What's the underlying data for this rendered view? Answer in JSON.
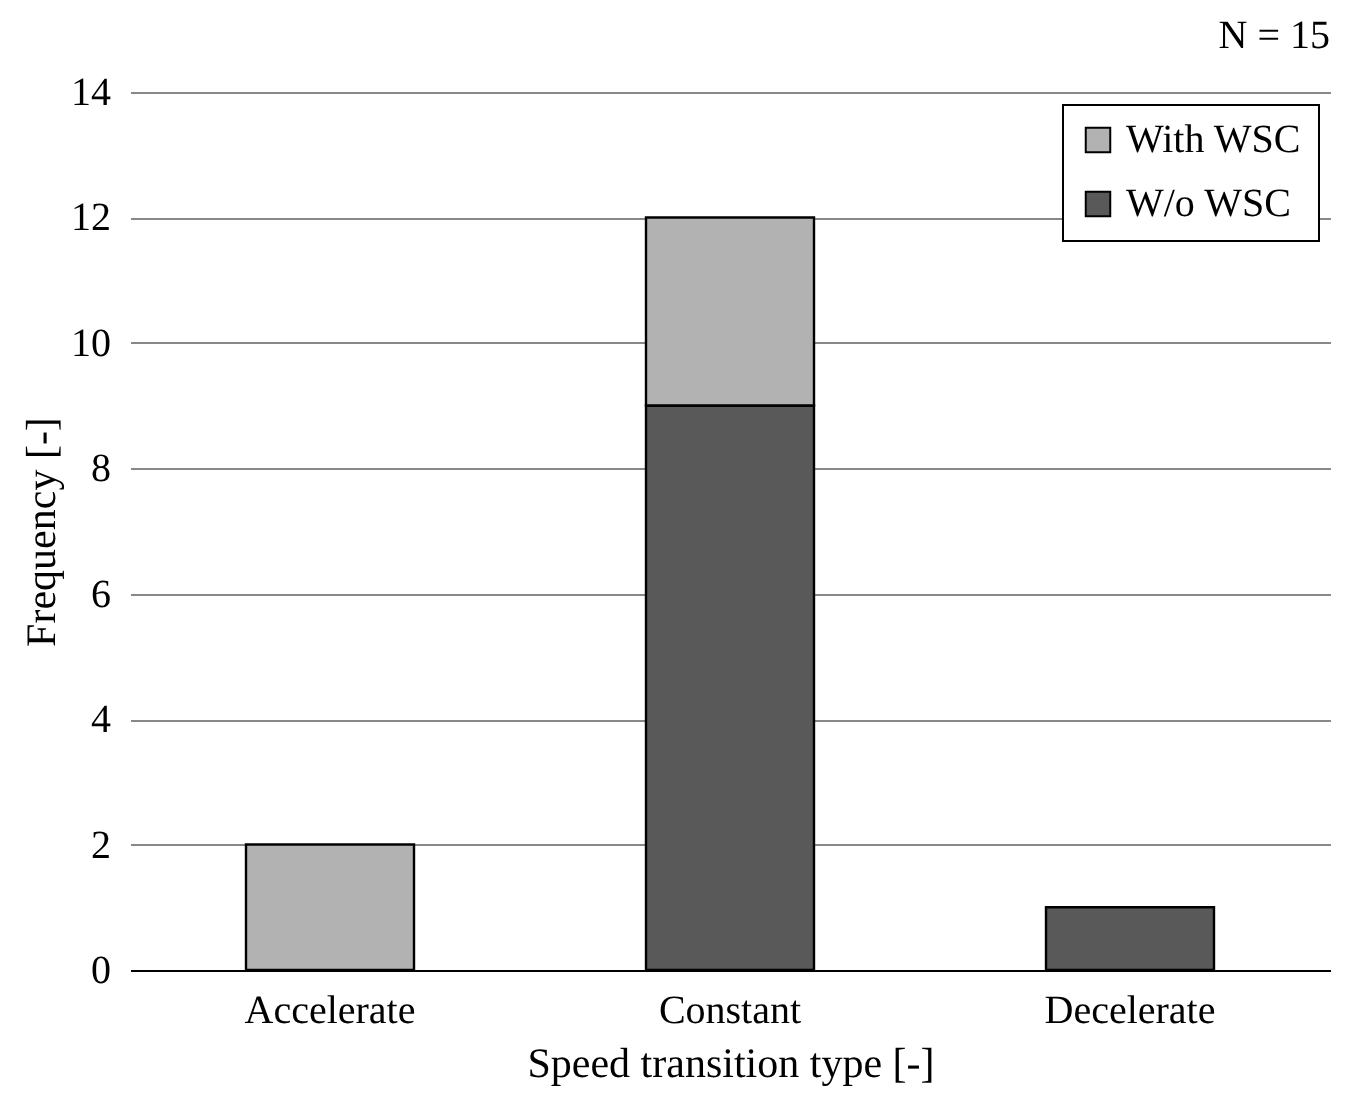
{
  "chart_data": {
    "type": "bar",
    "stacked": true,
    "xlabel": "Speed transition type [-]",
    "ylabel": "Frequency [-]",
    "annotations": [
      "N = 15"
    ],
    "categories": [
      "Accelerate",
      "Constant",
      "Decelerate"
    ],
    "series": [
      {
        "name": "W/o WSC",
        "color": "#595959",
        "values": [
          null,
          9,
          1
        ]
      },
      {
        "name": "With WSC",
        "color": "#b2b2b2",
        "values": [
          2,
          3,
          null
        ]
      }
    ],
    "ylim": [
      0,
      14
    ],
    "yticks": [
      0,
      2,
      4,
      6,
      8,
      10,
      12,
      14
    ],
    "grid": "y",
    "legend": "top right"
  }
}
